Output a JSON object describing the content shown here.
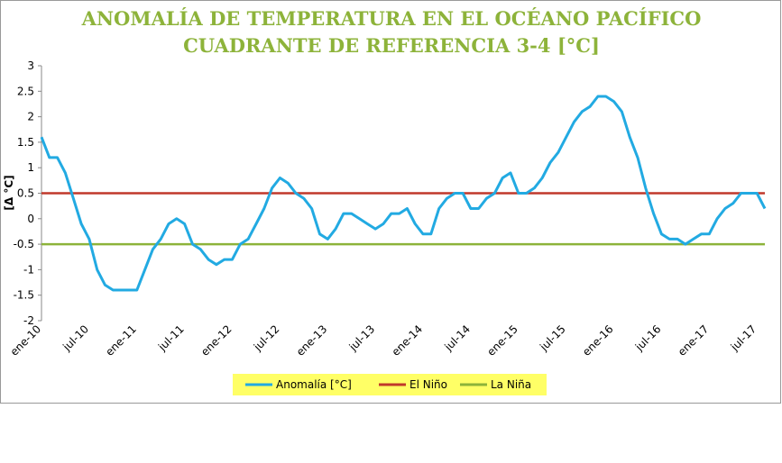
{
  "chart_data": {
    "type": "line",
    "title": "ANOMALÍA DE TEMPERATURA EN EL OCÉANO PACÍFICO",
    "subtitle": "CUADRANTE DE REFERENCIA 3-4 [°C]",
    "y_label": "[Δ °C]",
    "categories": [
      "ene-10",
      null,
      null,
      null,
      null,
      null,
      "jul-10",
      null,
      null,
      null,
      null,
      null,
      "ene-11",
      null,
      null,
      null,
      null,
      null,
      "jul-11",
      null,
      null,
      null,
      null,
      null,
      "ene-12",
      null,
      null,
      null,
      null,
      null,
      "jul-12",
      null,
      null,
      null,
      null,
      null,
      "ene-13",
      null,
      null,
      null,
      null,
      null,
      "jul-13",
      null,
      null,
      null,
      null,
      null,
      "ene-14",
      null,
      null,
      null,
      null,
      null,
      "jul-14",
      null,
      null,
      null,
      null,
      null,
      "ene-15",
      null,
      null,
      null,
      null,
      null,
      "jul-15",
      null,
      null,
      null,
      null,
      null,
      "ene-16",
      null,
      null,
      null,
      null,
      null,
      "jul-16",
      null,
      null,
      null,
      null,
      null,
      "ene-17",
      null,
      null,
      null,
      null,
      null,
      "jul-17",
      null
    ],
    "series": [
      {
        "name": "Anomalía [°C]",
        "color": "#22aae2",
        "values": [
          1.6,
          1.2,
          1.2,
          0.9,
          0.4,
          -0.1,
          -0.4,
          -1.0,
          -1.3,
          -1.4,
          -1.4,
          -1.4,
          -1.4,
          -1.0,
          -0.6,
          -0.4,
          -0.1,
          0.0,
          -0.1,
          -0.5,
          -0.6,
          -0.8,
          -0.9,
          -0.8,
          -0.8,
          -0.5,
          -0.4,
          -0.1,
          0.2,
          0.6,
          0.8,
          0.7,
          0.5,
          0.4,
          0.2,
          -0.3,
          -0.4,
          -0.2,
          0.1,
          0.1,
          0.0,
          -0.1,
          -0.2,
          -0.1,
          0.1,
          0.1,
          0.2,
          -0.1,
          -0.3,
          -0.3,
          0.2,
          0.4,
          0.5,
          0.5,
          0.2,
          0.2,
          0.4,
          0.5,
          0.8,
          0.9,
          0.5,
          0.5,
          0.6,
          0.8,
          1.1,
          1.3,
          1.6,
          1.9,
          2.1,
          2.2,
          2.4,
          2.4,
          2.3,
          2.1,
          1.6,
          1.2,
          0.6,
          0.1,
          -0.3,
          -0.4,
          -0.4,
          -0.5,
          -0.4,
          -0.3,
          -0.3,
          0.0,
          0.2,
          0.3,
          0.5,
          0.5,
          0.5,
          0.2
        ]
      },
      {
        "name": "El Niño",
        "color": "#c0392b",
        "values": [
          0.5,
          0.5,
          0.5,
          0.5,
          0.5,
          0.5,
          0.5,
          0.5,
          0.5,
          0.5,
          0.5,
          0.5,
          0.5,
          0.5,
          0.5,
          0.5,
          0.5,
          0.5,
          0.5,
          0.5,
          0.5,
          0.5,
          0.5,
          0.5,
          0.5,
          0.5,
          0.5,
          0.5,
          0.5,
          0.5,
          0.5,
          0.5,
          0.5,
          0.5,
          0.5,
          0.5,
          0.5,
          0.5,
          0.5,
          0.5,
          0.5,
          0.5,
          0.5,
          0.5,
          0.5,
          0.5,
          0.5,
          0.5,
          0.5,
          0.5,
          0.5,
          0.5,
          0.5,
          0.5,
          0.5,
          0.5,
          0.5,
          0.5,
          0.5,
          0.5,
          0.5,
          0.5,
          0.5,
          0.5,
          0.5,
          0.5,
          0.5,
          0.5,
          0.5,
          0.5,
          0.5,
          0.5,
          0.5,
          0.5,
          0.5,
          0.5,
          0.5,
          0.5,
          0.5,
          0.5,
          0.5,
          0.5,
          0.5,
          0.5,
          0.5,
          0.5,
          0.5,
          0.5,
          0.5,
          0.5,
          0.5,
          0.5
        ]
      },
      {
        "name": "La Niña",
        "color": "#8db33a",
        "values": [
          -0.5,
          -0.5,
          -0.5,
          -0.5,
          -0.5,
          -0.5,
          -0.5,
          -0.5,
          -0.5,
          -0.5,
          -0.5,
          -0.5,
          -0.5,
          -0.5,
          -0.5,
          -0.5,
          -0.5,
          -0.5,
          -0.5,
          -0.5,
          -0.5,
          -0.5,
          -0.5,
          -0.5,
          -0.5,
          -0.5,
          -0.5,
          -0.5,
          -0.5,
          -0.5,
          -0.5,
          -0.5,
          -0.5,
          -0.5,
          -0.5,
          -0.5,
          -0.5,
          -0.5,
          -0.5,
          -0.5,
          -0.5,
          -0.5,
          -0.5,
          -0.5,
          -0.5,
          -0.5,
          -0.5,
          -0.5,
          -0.5,
          -0.5,
          -0.5,
          -0.5,
          -0.5,
          -0.5,
          -0.5,
          -0.5,
          -0.5,
          -0.5,
          -0.5,
          -0.5,
          -0.5,
          -0.5,
          -0.5,
          -0.5,
          -0.5,
          -0.5,
          -0.5,
          -0.5,
          -0.5,
          -0.5,
          -0.5,
          -0.5,
          -0.5,
          -0.5,
          -0.5,
          -0.5,
          -0.5,
          -0.5,
          -0.5,
          -0.5,
          -0.5,
          -0.5,
          -0.5,
          -0.5,
          -0.5,
          -0.5,
          -0.5,
          -0.5,
          -0.5,
          -0.5,
          -0.5,
          -0.5
        ]
      }
    ],
    "ylim": [
      -2,
      3
    ],
    "yticks": [
      3,
      2.5,
      2,
      1.5,
      1,
      0.5,
      0,
      -0.5,
      -1,
      -1.5,
      -2
    ],
    "legend": "bottom"
  }
}
